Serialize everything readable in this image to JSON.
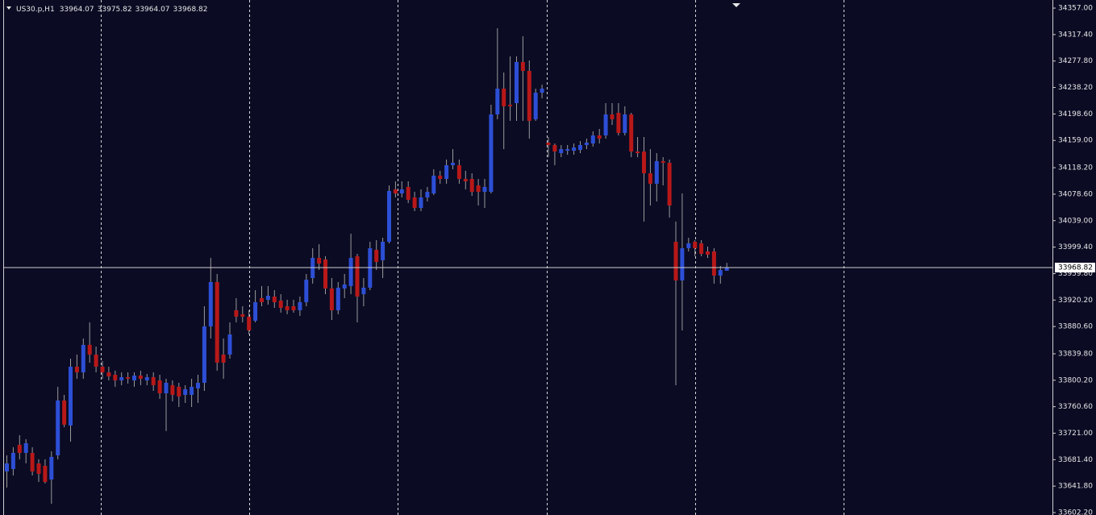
{
  "chart_data": {
    "type": "candlestick",
    "title": "US30.p,H1",
    "colors": {
      "up": "#2d4fd6",
      "down": "#b81818",
      "background": "#0b0b24"
    },
    "ylim": [
      33598.6,
      34369.1
    ],
    "yticks": [
      {
        "value": 34357,
        "label": "34357.00"
      },
      {
        "value": 34317.4,
        "label": "34317.40"
      },
      {
        "value": 34277.8,
        "label": "34277.80"
      },
      {
        "value": 34238.2,
        "label": "34238.20"
      },
      {
        "value": 34198.6,
        "label": "34198.60"
      },
      {
        "value": 34159,
        "label": "34159.00"
      },
      {
        "value": 34118.2,
        "label": "34118.20"
      },
      {
        "value": 34078.6,
        "label": "34078.60"
      },
      {
        "value": 34039,
        "label": "34039.00"
      },
      {
        "value": 33999.4,
        "label": "33999.40"
      },
      {
        "value": 33959.8,
        "label": "33959.80"
      },
      {
        "value": 33920.2,
        "label": "33920.20"
      },
      {
        "value": 33880.6,
        "label": "33880.60"
      },
      {
        "value": 33839.8,
        "label": "33839.80"
      },
      {
        "value": 33800.2,
        "label": "33800.20"
      },
      {
        "value": 33760.6,
        "label": "33760.60"
      },
      {
        "value": 33721,
        "label": "33721.00"
      },
      {
        "value": 33681.4,
        "label": "33681.40"
      },
      {
        "value": 33641.8,
        "label": "33641.80"
      },
      {
        "value": 33602.2,
        "label": "33602.20"
      }
    ],
    "open": [
      33663.8,
      33667.4,
      33703.6,
      33691.5,
      33691.5,
      33675.8,
      33672.2,
      33651.7,
      33687.9,
      33769.9,
      33732.5,
      33820.5,
      33812.0,
      33853.1,
      33838.6,
      33820.5,
      33812.0,
      33808.4,
      33800.0,
      33804.8,
      33800.0,
      33807.2,
      33800.0,
      33804.8,
      33800.0,
      33780.7,
      33792.8,
      33790.4,
      33778.3,
      33778.3,
      33788.0,
      33796.4,
      33880.8,
      33947.1,
      33838.6,
      33838.6,
      33904.9,
      33898.9,
      33895.3,
      33889.2,
      33923.0,
      33920.6,
      33925.4,
      33919.4,
      33910.9,
      33910.9,
      33904.9,
      33917.0,
      33953.1,
      33983.3,
      33980.9,
      33937.5,
      33904.9,
      33937.5,
      33941.1,
      33985.7,
      33929.0,
      33938.7,
      33995.3,
      33979.7,
      34007.4,
      34085.8,
      34079.7,
      34089.4,
      34073.7,
      34058.0,
      34073.7,
      34079.7,
      34106.3,
      34101.4,
      34121.9,
      34121.9,
      34101.4,
      34101.4,
      34091.8,
      34082.1,
      34082.1,
      34197.9,
      34236.5,
      34212.4,
      34214.8,
      34276.3,
      34263.0,
      34190.7,
      34230.4,
      34155.7,
      34152.1,
      34140.0,
      34143.6,
      34143.6,
      34144.8,
      34152.1,
      34154.5,
      34166.5,
      34166.5,
      34197.9,
      34200.3,
      34170.2,
      34197.9,
      34142.4,
      34142.4,
      34109.9,
      34094.2,
      34128.0,
      34125.5,
      34007.4,
      33949.5,
      33997.7,
      34007.4,
      34005.0,
      33992.9,
      33992.9,
      33956.8,
      33964.07
    ],
    "high": [
      33687.9,
      33700.0,
      33718.0,
      33712.0,
      33700.0,
      33681.9,
      33681.9,
      33693.9,
      33790.4,
      33778.3,
      33832.5,
      33838.6,
      33862.7,
      33886.8,
      33850.6,
      33828.9,
      33820.5,
      33814.5,
      33812.0,
      33812.0,
      33812.0,
      33814.5,
      33809.6,
      33812.0,
      33808.4,
      33802.4,
      33800.0,
      33796.4,
      33792.8,
      33802.4,
      33808.4,
      33910.9,
      33983.3,
      33959.2,
      33862.7,
      33886.8,
      33923.0,
      33910.9,
      33904.9,
      33935.0,
      33941.1,
      33941.1,
      33935.0,
      33929.0,
      33920.6,
      33920.6,
      33925.4,
      33959.2,
      33997.7,
      34003.8,
      33985.7,
      33953.1,
      33947.1,
      33959.2,
      34019.5,
      33989.3,
      33953.1,
      34007.4,
      34009.8,
      34013.4,
      34091.8,
      34097.8,
      34097.8,
      34097.8,
      34082.1,
      34085.8,
      34089.4,
      34115.9,
      34113.5,
      34130.4,
      34146.0,
      34130.4,
      34113.5,
      34109.9,
      34101.4,
      34101.4,
      34212.4,
      34326.9,
      34260.6,
      34284.7,
      34284.7,
      34314.8,
      34278.7,
      34236.5,
      34242.5,
      34164.1,
      34154.5,
      34152.1,
      34152.1,
      34154.5,
      34158.1,
      34161.7,
      34172.6,
      34176.2,
      34214.8,
      34214.8,
      34214.8,
      34210.0,
      34200.3,
      34164.1,
      34164.1,
      34146.0,
      34140.0,
      34134.0,
      34130.4,
      34037.6,
      34079.7,
      34013.4,
      34009.8,
      34009.8,
      34000.2,
      33997.7,
      33971.2,
      33975.82
    ],
    "low": [
      33639.7,
      33657.7,
      33681.9,
      33675.8,
      33657.7,
      33648.1,
      33645.7,
      33615.5,
      33681.9,
      33730.1,
      33708.4,
      33802.4,
      33802.4,
      33826.5,
      33812.0,
      33802.4,
      33800.0,
      33790.4,
      33792.8,
      33795.2,
      33790.4,
      33792.8,
      33792.8,
      33784.3,
      33772.3,
      33724.1,
      33768.6,
      33760.2,
      33766.3,
      33760.2,
      33766.3,
      33784.3,
      33862.7,
      33814.5,
      33802.4,
      33832.5,
      33886.8,
      33886.8,
      33868.7,
      33886.8,
      33910.9,
      33913.3,
      33908.5,
      33901.3,
      33898.9,
      33901.3,
      33896.5,
      33910.9,
      33944.7,
      33965.2,
      33929.0,
      33890.4,
      33898.9,
      33923.0,
      33929.0,
      33886.8,
      33910.9,
      33935.0,
      33965.2,
      33953.1,
      34005.0,
      34073.7,
      34073.7,
      34065.3,
      34053.2,
      34053.2,
      34067.7,
      34077.3,
      34094.2,
      34094.2,
      34115.9,
      34094.2,
      34085.8,
      34076.1,
      34061.6,
      34058.0,
      34079.7,
      34190.7,
      34146.0,
      34188.3,
      34188.3,
      34188.3,
      34161.7,
      34188.3,
      34222.0,
      34134.0,
      34121.9,
      34134.0,
      34137.6,
      34137.6,
      34140.0,
      34146.0,
      34149.7,
      34154.5,
      34161.7,
      34182.2,
      34166.5,
      34166.5,
      34134.0,
      34134.0,
      34037.6,
      34061.6,
      34067.7,
      34091.8,
      34043.6,
      33792.8,
      33874.8,
      33992.9,
      33985.7,
      33985.7,
      33983.3,
      33944.7,
      33944.7,
      33964.07
    ],
    "close": [
      33675.8,
      33691.5,
      33691.5,
      33706.0,
      33663.8,
      33660.2,
      33648.1,
      33685.5,
      33769.9,
      33733.7,
      33820.5,
      33812.0,
      33853.1,
      33838.6,
      33820.5,
      33812.0,
      33806.0,
      33800.0,
      33804.8,
      33802.4,
      33807.2,
      33802.4,
      33804.8,
      33792.8,
      33780.7,
      33796.4,
      33778.3,
      33775.9,
      33786.7,
      33790.4,
      33796.4,
      33880.8,
      33947.1,
      33826.5,
      33826.5,
      33868.7,
      33895.3,
      33895.3,
      33874.8,
      33917.0,
      33917.0,
      33926.6,
      33917.0,
      33908.5,
      33904.9,
      33904.9,
      33917.0,
      33950.7,
      33983.3,
      33974.8,
      33937.5,
      33904.9,
      33938.7,
      33943.5,
      33983.3,
      33925.4,
      33938.7,
      33997.7,
      33977.3,
      34007.4,
      34083.4,
      34079.7,
      34085.8,
      34070.1,
      34058.0,
      34073.7,
      34082.1,
      34106.3,
      34101.4,
      34121.9,
      34125.5,
      34101.4,
      34097.8,
      34082.1,
      34082.1,
      34089.4,
      34197.9,
      34236.5,
      34210.0,
      34210.0,
      34276.3,
      34263.0,
      34188.3,
      34230.4,
      34236.5,
      34152.1,
      34142.4,
      34146.0,
      34146.0,
      34148.4,
      34152.1,
      34155.7,
      34166.5,
      34161.7,
      34197.9,
      34190.7,
      34170.2,
      34197.9,
      34142.4,
      34140.0,
      34109.9,
      34094.2,
      34128.0,
      34125.5,
      34061.6,
      33949.5,
      33997.7,
      34005.0,
      33997.7,
      33989.3,
      33988.1,
      33956.8,
      33965.2,
      33968.82
    ]
  }
}
